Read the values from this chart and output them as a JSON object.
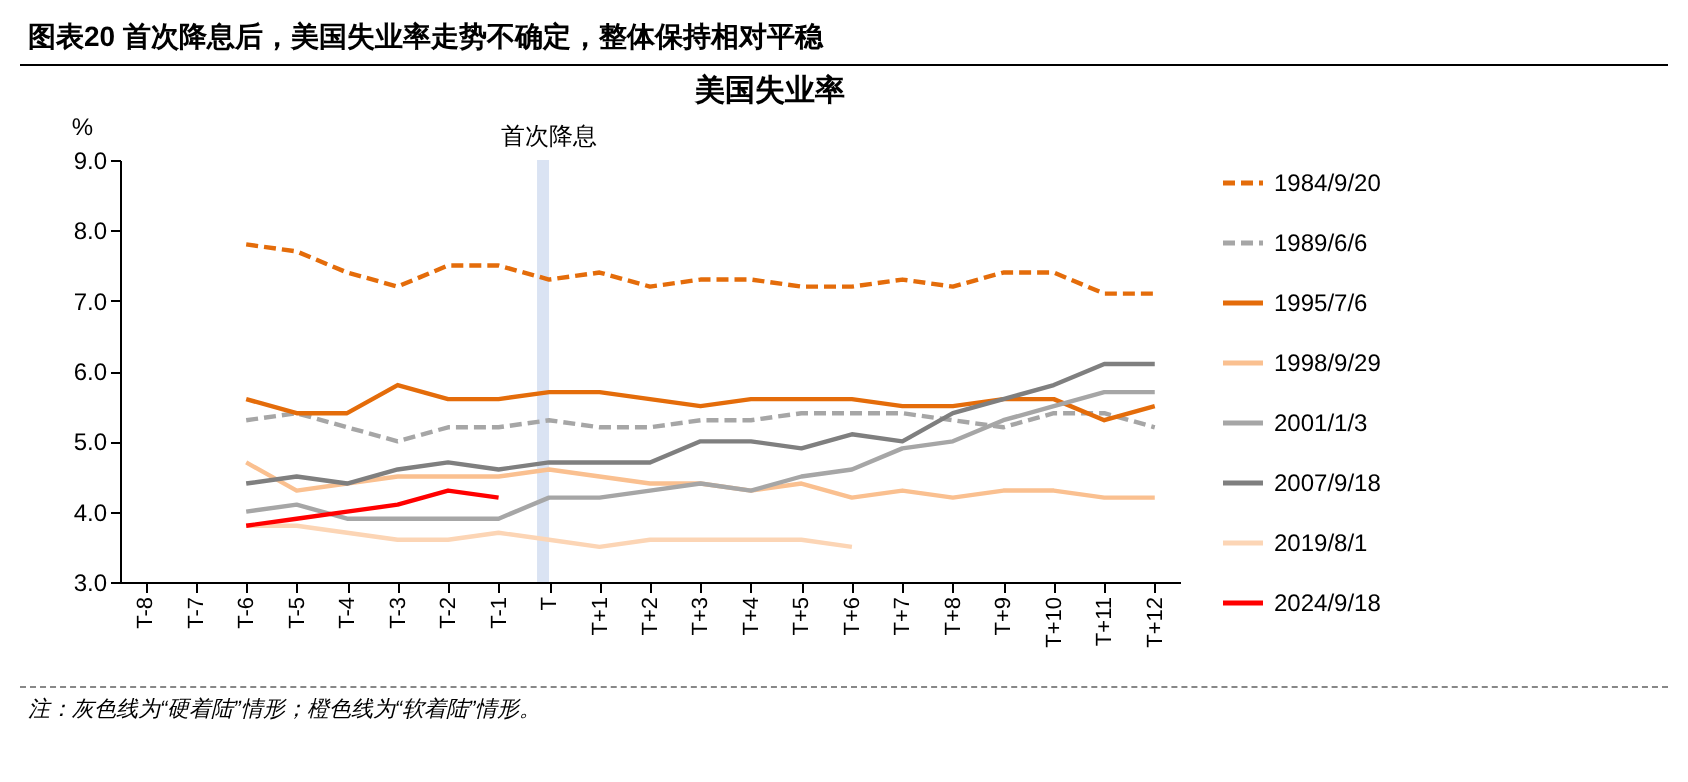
{
  "chart_data": {
    "type": "line",
    "title": "图表20  首次降息后，美国失业率走势不确定，整体保持相对平稳",
    "subtitle": "美国失业率",
    "ylabel": "%",
    "annotations": [
      "注：灰色线为“硬着陆”情形；橙色线为“软着陆”情形。"
    ],
    "categories": [
      "T-8",
      "T-7",
      "T-6",
      "T-5",
      "T-4",
      "T-3",
      "T-2",
      "T-1",
      "T",
      "T+1",
      "T+2",
      "T+3",
      "T+4",
      "T+5",
      "T+6",
      "T+7",
      "T+8",
      "T+9",
      "T+10",
      "T+11",
      "T+12"
    ],
    "ylim": [
      3,
      9
    ],
    "yticks": [
      {
        "value": 3,
        "label": "3.0"
      },
      {
        "value": 4,
        "label": "4.0"
      },
      {
        "value": 5,
        "label": "5.0"
      },
      {
        "value": 6,
        "label": "6.0"
      },
      {
        "value": 7,
        "label": "7.0"
      },
      {
        "value": 8,
        "label": "8.0"
      },
      {
        "value": 9,
        "label": "9.0"
      }
    ],
    "grid": false,
    "legend": "right",
    "marker": "none",
    "bands": [
      {
        "axis": "x",
        "from": "T",
        "to": "T",
        "label": "首次降息",
        "color": "#dae3f3"
      }
    ],
    "series": [
      {
        "name": "1984/9/20",
        "color": "#e46c0a",
        "line_style": "dashed",
        "values": [
          null,
          null,
          7.8,
          7.7,
          7.4,
          7.2,
          7.5,
          7.5,
          7.3,
          7.4,
          7.2,
          7.3,
          7.3,
          7.2,
          7.2,
          7.3,
          7.2,
          7.4,
          7.4,
          7.1,
          7.1
        ]
      },
      {
        "name": "1989/6/6",
        "color": "#a6a6a6",
        "line_style": "dashed",
        "values": [
          null,
          null,
          5.3,
          5.4,
          5.2,
          5.0,
          5.2,
          5.2,
          5.3,
          5.2,
          5.2,
          5.3,
          5.3,
          5.4,
          5.4,
          5.4,
          5.3,
          5.2,
          5.4,
          5.4,
          5.2
        ]
      },
      {
        "name": "1995/7/6",
        "color": "#e46c0a",
        "line_style": "solid",
        "values": [
          null,
          null,
          5.6,
          5.4,
          5.4,
          5.8,
          5.6,
          5.6,
          5.7,
          5.7,
          5.6,
          5.5,
          5.6,
          5.6,
          5.6,
          5.5,
          5.5,
          5.6,
          5.6,
          5.3,
          5.5
        ]
      },
      {
        "name": "1998/9/29",
        "color": "#fac090",
        "line_style": "solid",
        "values": [
          null,
          null,
          4.7,
          4.3,
          4.4,
          4.5,
          4.5,
          4.5,
          4.6,
          4.5,
          4.4,
          4.4,
          4.3,
          4.4,
          4.2,
          4.3,
          4.2,
          4.3,
          4.3,
          4.2,
          4.2
        ]
      },
      {
        "name": "2001/1/3",
        "color": "#a6a6a6",
        "line_style": "solid",
        "values": [
          null,
          null,
          4.0,
          4.1,
          3.9,
          3.9,
          3.9,
          3.9,
          4.2,
          4.2,
          4.3,
          4.4,
          4.3,
          4.5,
          4.6,
          4.9,
          5.0,
          5.3,
          5.5,
          5.7,
          5.7
        ]
      },
      {
        "name": "2007/9/18",
        "color": "#7f7f7f",
        "line_style": "solid",
        "values": [
          null,
          null,
          4.4,
          4.5,
          4.4,
          4.6,
          4.7,
          4.6,
          4.7,
          4.7,
          4.7,
          5.0,
          5.0,
          4.9,
          5.1,
          5.0,
          5.4,
          5.6,
          5.8,
          6.1,
          6.1
        ]
      },
      {
        "name": "2019/8/1",
        "color": "#fcd5b5",
        "line_style": "solid",
        "values": [
          null,
          null,
          3.8,
          3.8,
          3.7,
          3.6,
          3.6,
          3.7,
          3.6,
          3.5,
          3.6,
          3.6,
          3.6,
          3.6,
          3.5,
          null,
          null,
          null,
          null,
          null,
          null
        ]
      },
      {
        "name": "2024/9/18",
        "color": "#ff0000",
        "line_style": "solid",
        "values": [
          null,
          null,
          3.8,
          3.9,
          4.0,
          4.1,
          4.3,
          4.2,
          null,
          null,
          null,
          null,
          null,
          null,
          null,
          null,
          null,
          null,
          null,
          null,
          null
        ]
      }
    ]
  }
}
